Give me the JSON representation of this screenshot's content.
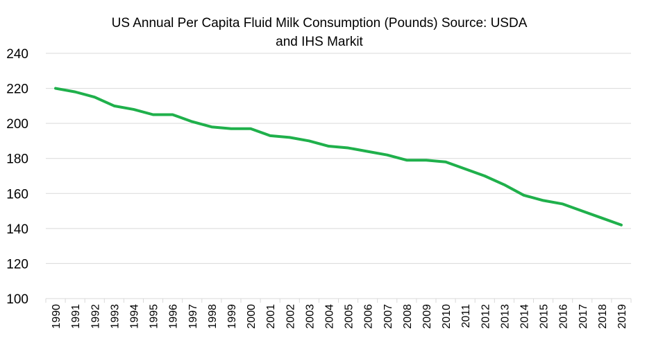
{
  "chart_data": {
    "type": "line",
    "title": "US Annual Per Capita Fluid Milk Consumption (Pounds) Source: USDA and IHS Markit",
    "title_lines": [
      "US Annual Per Capita Fluid Milk Consumption (Pounds) Source: USDA",
      "and IHS Markit"
    ],
    "xlabel": "",
    "ylabel": "",
    "x": [
      "1990",
      "1991",
      "1992",
      "1993",
      "1994",
      "1995",
      "1996",
      "1997",
      "1998",
      "1999",
      "2000",
      "2001",
      "2002",
      "2003",
      "2004",
      "2005",
      "2006",
      "2007",
      "2008",
      "2009",
      "2010",
      "2011",
      "2012",
      "2013",
      "2014",
      "2015",
      "2016",
      "2017",
      "2018",
      "2019"
    ],
    "series": [
      {
        "values": [
          220,
          218,
          215,
          210,
          208,
          205,
          205,
          201,
          198,
          197,
          197,
          193,
          192,
          190,
          187,
          186,
          184,
          182,
          179,
          179,
          178,
          174,
          170,
          165,
          159,
          156,
          154,
          150,
          146,
          142
        ],
        "color": "#1fb04b"
      }
    ],
    "ylim": [
      100,
      240
    ],
    "yticks": [
      100,
      120,
      140,
      160,
      180,
      200,
      220,
      240
    ],
    "grid": true,
    "gridline_color": "#d9d9d9",
    "legend": "none"
  }
}
